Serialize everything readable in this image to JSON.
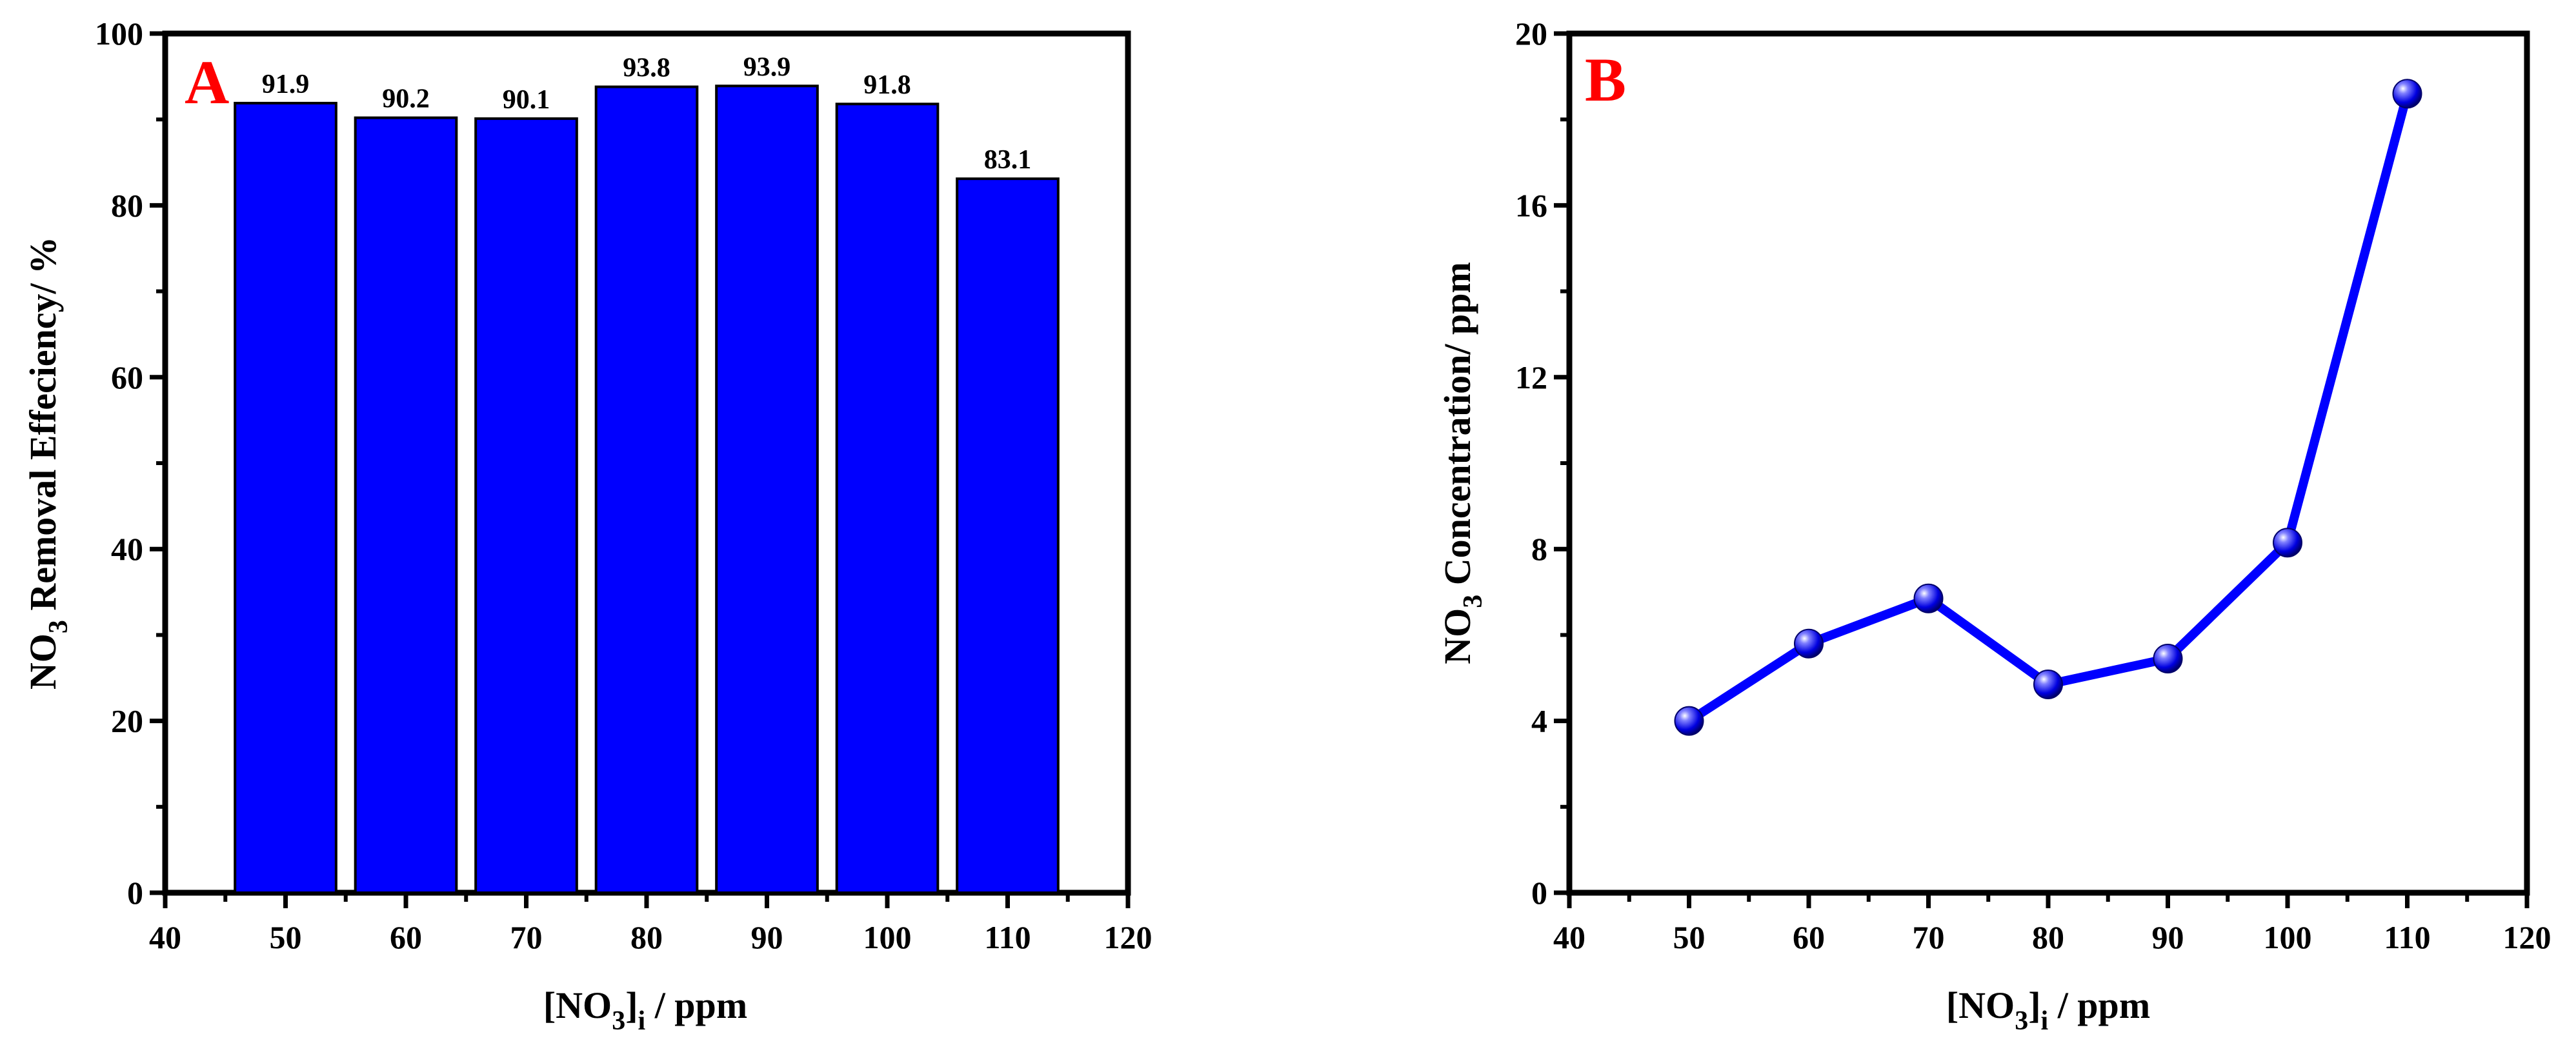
{
  "colors": {
    "bar": "#0000ff",
    "line": "#0000ff",
    "letter": "#ff0000",
    "axis": "#000000"
  },
  "chart_data": [
    {
      "type": "bar",
      "panel_label": "A",
      "x": [
        50,
        60,
        70,
        80,
        90,
        100,
        110
      ],
      "values": [
        91.9,
        90.2,
        90.1,
        93.8,
        93.9,
        91.8,
        83.1
      ],
      "data_labels": [
        "91.9",
        "90.2",
        "90.1",
        "93.8",
        "93.9",
        "91.8",
        "83.1"
      ],
      "xlim": [
        40,
        120
      ],
      "ylim": [
        0,
        100
      ],
      "xticks": [
        "40",
        "50",
        "60",
        "70",
        "80",
        "90",
        "100",
        "110",
        "120"
      ],
      "yticks": [
        "0",
        "20",
        "40",
        "60",
        "80",
        "100"
      ],
      "xlabel": {
        "main": "[NO",
        "sub1": "3",
        "mid": "]",
        "sub2": "i",
        "tail": " / ppm"
      },
      "ylabel": {
        "main": "NO",
        "sub": "3",
        "tail": " Removal Effeciency/ %"
      }
    },
    {
      "type": "line",
      "panel_label": "B",
      "x": [
        50,
        60,
        70,
        80,
        90,
        100,
        110
      ],
      "values": [
        4.0,
        5.8,
        6.85,
        4.85,
        5.45,
        8.15,
        18.6
      ],
      "xlim": [
        40,
        120
      ],
      "ylim": [
        0,
        20
      ],
      "xticks": [
        "40",
        "50",
        "60",
        "70",
        "80",
        "90",
        "100",
        "110",
        "120"
      ],
      "yticks": [
        "0",
        "4",
        "8",
        "12",
        "16",
        "20"
      ],
      "xlabel": {
        "main": "[NO",
        "sub1": "3",
        "mid": "]",
        "sub2": "i",
        "tail": " / ppm"
      },
      "ylabel": {
        "main": "NO",
        "sub": "3",
        "tail": " Concentration/ ppm"
      }
    }
  ]
}
